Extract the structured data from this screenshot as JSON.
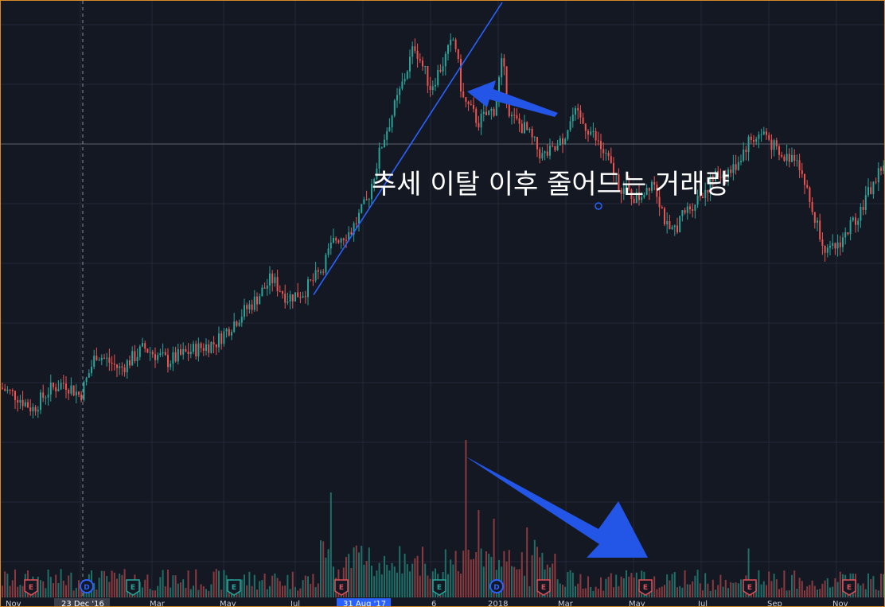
{
  "colors": {
    "background": "#141823",
    "grid": "#232938",
    "up": "#26a69a",
    "down": "#ef5350",
    "up_volume": "#1f6f69",
    "down_volume": "#8a3a3e",
    "trendline": "#2962ff",
    "arrow": "#2355e6",
    "crosshair": "#8a8f9a",
    "earnings_badge": "#e0515a",
    "earnings_badge_green": "#26a69a",
    "dividend_badge": "#2962ff",
    "border": "#d98a2b"
  },
  "annotation": {
    "text": "추세 이탈 이후 줄어드는 거래량"
  },
  "x_axis": {
    "highlighted_start": "23 Dec '16",
    "highlighted_end": "31 Aug '17",
    "ticks": [
      "Nov",
      "Mar",
      "May",
      "Jul",
      "6",
      "2018",
      "Mar",
      "May",
      "Jul",
      "Sep",
      "Nov"
    ]
  },
  "events": [
    {
      "type": "E",
      "color": "red"
    },
    {
      "type": "D",
      "color": "blue"
    },
    {
      "type": "E",
      "color": "green"
    },
    {
      "type": "E",
      "color": "green"
    },
    {
      "type": "E",
      "color": "red"
    },
    {
      "type": "E",
      "color": "green"
    },
    {
      "type": "D",
      "color": "blue"
    },
    {
      "type": "E",
      "color": "red"
    },
    {
      "type": "E",
      "color": "red"
    },
    {
      "type": "E",
      "color": "red"
    },
    {
      "type": "E",
      "color": "red"
    },
    {
      "type": "E",
      "color": "red"
    },
    {
      "type": "E",
      "color": "red"
    }
  ],
  "chart_data": {
    "type": "candlestick",
    "title": "",
    "description": "Daily price candles with volume bars; price trends up from late 2016 into a peak around end of 2017, breaks a rising trendline, then declines with falling volume.",
    "price_path": [
      [
        0,
        0.25
      ],
      [
        20,
        0.22
      ],
      [
        40,
        0.17
      ],
      [
        60,
        0.24
      ],
      [
        80,
        0.27
      ],
      [
        100,
        0.22
      ],
      [
        120,
        0.38
      ],
      [
        150,
        0.32
      ],
      [
        180,
        0.4
      ],
      [
        210,
        0.35
      ],
      [
        240,
        0.39
      ],
      [
        270,
        0.42
      ],
      [
        300,
        0.52
      ],
      [
        320,
        0.58
      ],
      [
        340,
        0.66
      ],
      [
        360,
        0.59
      ],
      [
        380,
        0.61
      ],
      [
        400,
        0.68
      ],
      [
        420,
        0.81
      ],
      [
        440,
        0.84
      ],
      [
        460,
        0.95
      ],
      [
        480,
        1.18
      ],
      [
        500,
        1.35
      ],
      [
        520,
        1.54
      ],
      [
        540,
        1.38
      ],
      [
        560,
        1.5
      ],
      [
        570,
        1.57
      ],
      [
        580,
        1.34
      ],
      [
        600,
        1.25
      ],
      [
        620,
        1.3
      ],
      [
        630,
        1.48
      ],
      [
        640,
        1.27
      ],
      [
        660,
        1.22
      ],
      [
        680,
        1.12
      ],
      [
        700,
        1.15
      ],
      [
        720,
        1.28
      ],
      [
        740,
        1.22
      ],
      [
        760,
        1.12
      ],
      [
        780,
        1.0
      ],
      [
        800,
        0.96
      ],
      [
        820,
        1.04
      ],
      [
        840,
        0.82
      ],
      [
        860,
        0.91
      ],
      [
        880,
        0.98
      ],
      [
        900,
        1.05
      ],
      [
        920,
        1.07
      ],
      [
        940,
        1.18
      ],
      [
        960,
        1.21
      ],
      [
        980,
        1.11
      ],
      [
        1000,
        1.13
      ],
      [
        1020,
        0.91
      ],
      [
        1040,
        0.75
      ],
      [
        1060,
        0.82
      ],
      [
        1080,
        0.92
      ],
      [
        1100,
        1.04
      ],
      [
        1110,
        1.1
      ]
    ],
    "price_range": [
      0.0,
      1.7
    ],
    "volume_spikes": [
      [
        415,
        0.6
      ],
      [
        570,
        1.0
      ],
      [
        585,
        0.9
      ],
      [
        600,
        0.5
      ],
      [
        620,
        0.45
      ],
      [
        660,
        0.4
      ],
      [
        940,
        0.28
      ]
    ],
    "trendline": {
      "from": [
        393,
        0.6
      ],
      "to": [
        630,
        1.7
      ]
    },
    "grid": true
  }
}
